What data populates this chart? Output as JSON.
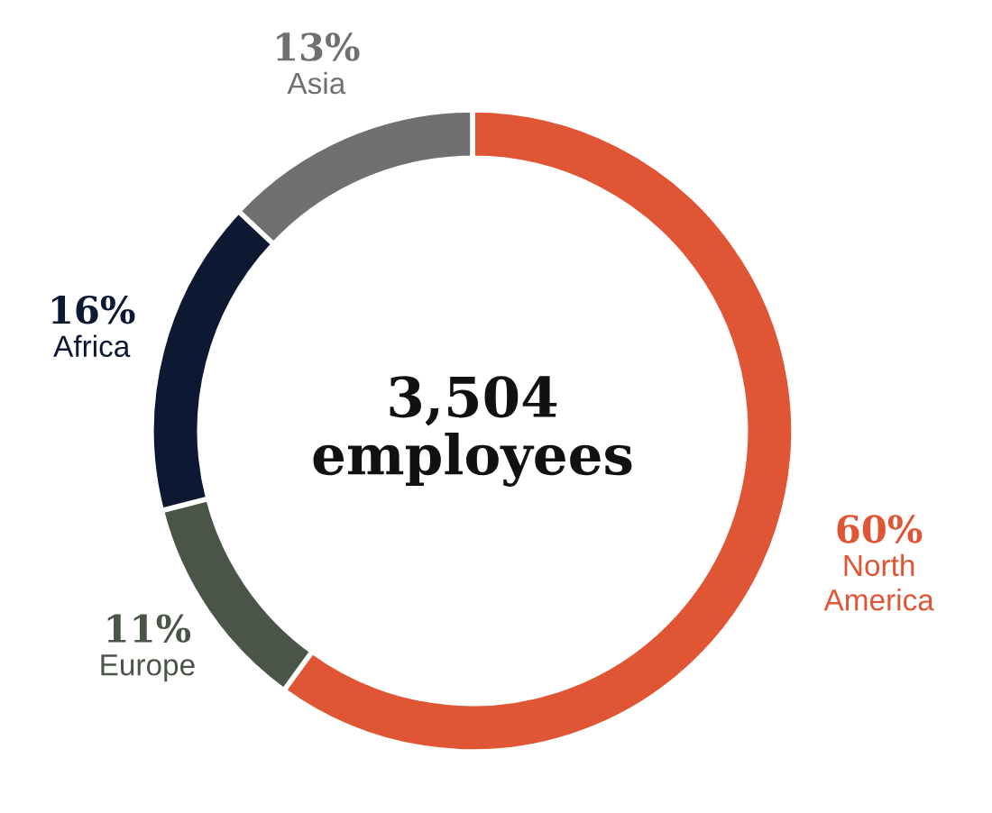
{
  "chart_data": {
    "type": "donut",
    "categories": [
      "North America",
      "Europe",
      "Africa",
      "Asia"
    ],
    "values": [
      60,
      11,
      16,
      13
    ],
    "colors": [
      "#e05533",
      "#4a5548",
      "#0d1833",
      "#707070"
    ],
    "value_labels": [
      "60%",
      "11%",
      "16%",
      "13%"
    ],
    "annotations": [
      "3,504\nemployees"
    ]
  }
}
